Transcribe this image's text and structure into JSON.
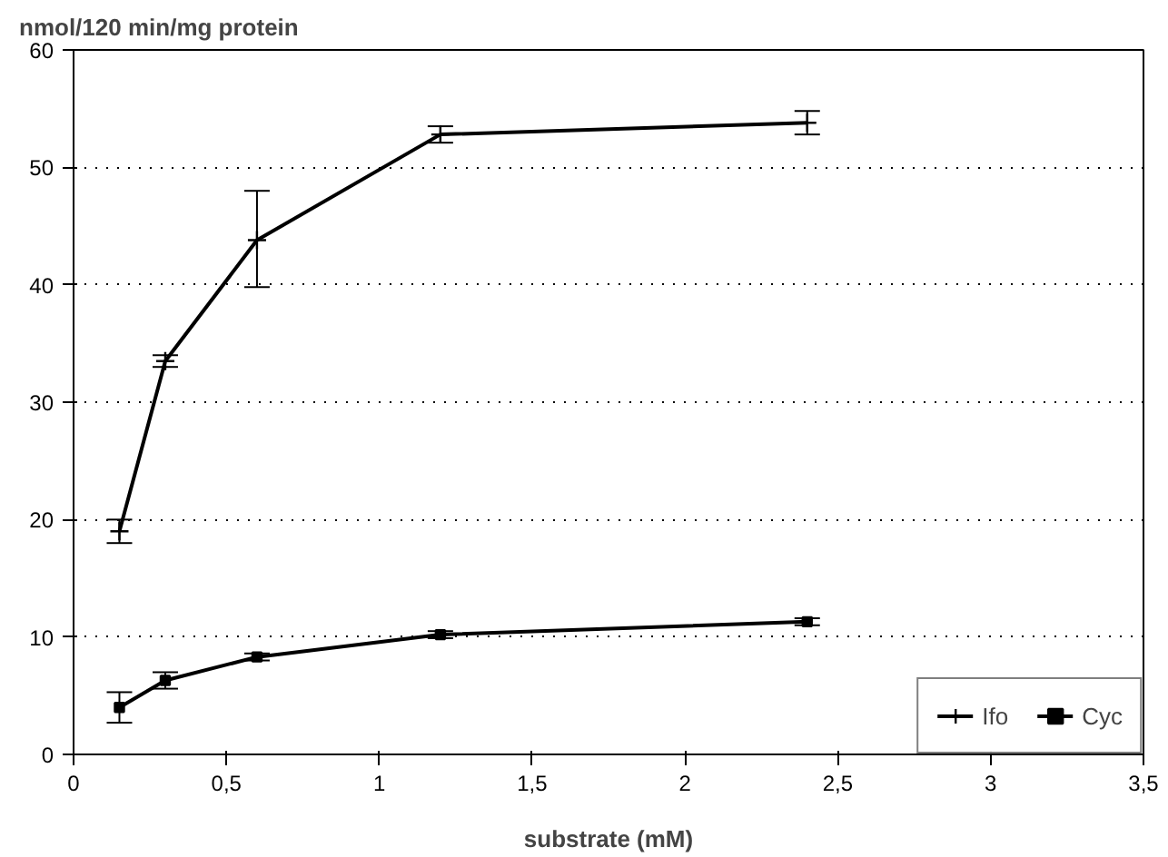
{
  "chart_data": {
    "type": "line",
    "ylabel": "nmol/120 min/mg protein",
    "xlabel": "substrate (mM)",
    "x": [
      0.15,
      0.3,
      0.6,
      1.2,
      2.4
    ],
    "series": [
      {
        "name": "Ifo",
        "color": "#000000",
        "marker": "cross",
        "values": [
          19,
          33.5,
          43.8,
          52.8,
          53.8
        ],
        "errors": [
          1,
          0.5,
          [
            39.8,
            48
          ],
          0.7,
          1
        ]
      },
      {
        "name": "Cyc",
        "color": "#000000",
        "marker": "square",
        "values": [
          4,
          6.3,
          8.3,
          10.2,
          11.3
        ],
        "errors": [
          1.3,
          0.7,
          0.3,
          0.3,
          0.3
        ]
      }
    ],
    "xlim": [
      0,
      3.5
    ],
    "ylim": [
      0,
      60
    ],
    "xticks": [
      0,
      {
        "value": 0.5,
        "label": "0,5"
      },
      1,
      {
        "value": 1.5,
        "label": "1,5"
      },
      2,
      {
        "value": 2.5,
        "label": "2,5"
      },
      3,
      {
        "value": 3.5,
        "label": "3,5"
      }
    ],
    "yticks": [
      0,
      10,
      20,
      30,
      40,
      50,
      60
    ],
    "grid": "y",
    "legend": "bottom right",
    "line_style": "solid"
  }
}
